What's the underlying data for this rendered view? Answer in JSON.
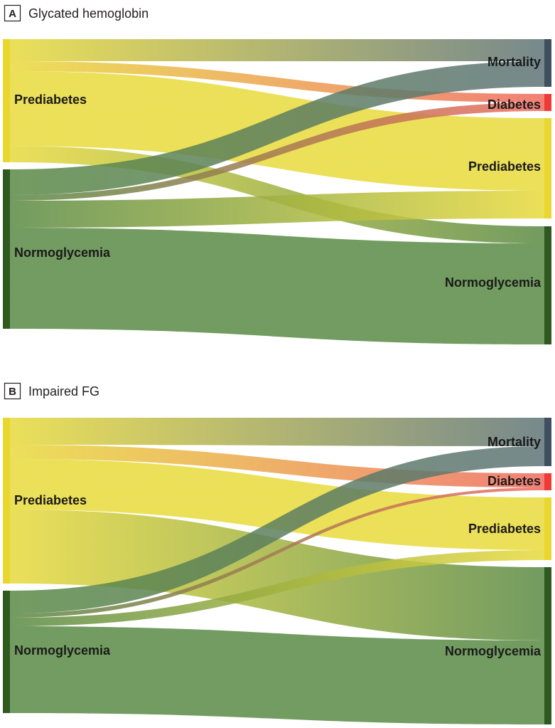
{
  "colors": {
    "prediabetes": "#e8da3c",
    "normoglycemia": "#5a8a45",
    "mortality": "#5f7478",
    "diabetes": "#ef6a5f",
    "node_prediabetes": "#e9d62e",
    "node_normoglycemia": "#2f5a1f",
    "node_mortality": "#3f4f5f",
    "node_diabetes": "#ee3b35"
  },
  "chart_data": [
    {
      "type": "sankey",
      "panel": "A",
      "title": "Glycated hemoglobin",
      "source_nodes": [
        "Prediabetes",
        "Normoglycemia"
      ],
      "target_nodes": [
        "Mortality",
        "Diabetes",
        "Prediabetes",
        "Normoglycemia"
      ],
      "links": [
        {
          "source": "Prediabetes",
          "target": "Mortality"
        },
        {
          "source": "Prediabetes",
          "target": "Diabetes"
        },
        {
          "source": "Prediabetes",
          "target": "Prediabetes"
        },
        {
          "source": "Prediabetes",
          "target": "Normoglycemia"
        },
        {
          "source": "Normoglycemia",
          "target": "Mortality"
        },
        {
          "source": "Normoglycemia",
          "target": "Diabetes"
        },
        {
          "source": "Normoglycemia",
          "target": "Prediabetes"
        },
        {
          "source": "Normoglycemia",
          "target": "Normoglycemia"
        }
      ]
    },
    {
      "type": "sankey",
      "panel": "B",
      "title": "Impaired FG",
      "source_nodes": [
        "Prediabetes",
        "Normoglycemia"
      ],
      "target_nodes": [
        "Mortality",
        "Diabetes",
        "Prediabetes",
        "Normoglycemia"
      ],
      "links": [
        {
          "source": "Prediabetes",
          "target": "Mortality"
        },
        {
          "source": "Prediabetes",
          "target": "Diabetes"
        },
        {
          "source": "Prediabetes",
          "target": "Prediabetes"
        },
        {
          "source": "Prediabetes",
          "target": "Normoglycemia"
        },
        {
          "source": "Normoglycemia",
          "target": "Mortality"
        },
        {
          "source": "Normoglycemia",
          "target": "Diabetes"
        },
        {
          "source": "Normoglycemia",
          "target": "Prediabetes"
        },
        {
          "source": "Normoglycemia",
          "target": "Normoglycemia"
        }
      ]
    }
  ]
}
